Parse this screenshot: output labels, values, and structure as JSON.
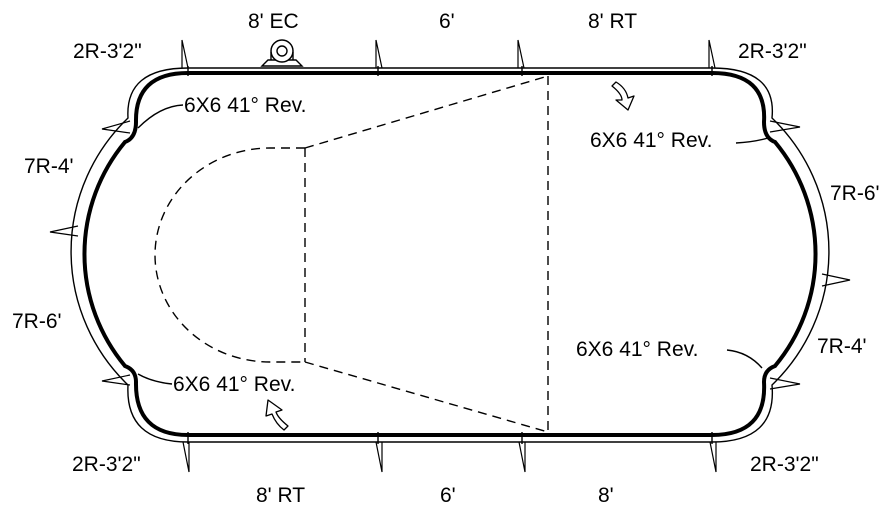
{
  "labels": {
    "top_left_corner": "2R-3'2\"",
    "top_seg_1": "8' EC",
    "top_seg_2": "6'",
    "top_seg_3": "8' RT",
    "top_right_corner": "2R-3'2\"",
    "left_upper": "7R-4'",
    "left_lower": "7R-6'",
    "right_upper": "7R-6'",
    "right_lower": "7R-4'",
    "bottom_left_corner": "2R-3'2\"",
    "bottom_seg_1": "8' RT",
    "bottom_seg_2": "6'",
    "bottom_seg_3": "8'",
    "bottom_right_corner": "2R-3'2\""
  },
  "callouts": {
    "upper_left": "6X6 41° Rev.",
    "upper_right": "6X6 41° Rev.",
    "lower_right": "6X6 41° Rev.",
    "lower_left": "6X6 41° Rev."
  }
}
